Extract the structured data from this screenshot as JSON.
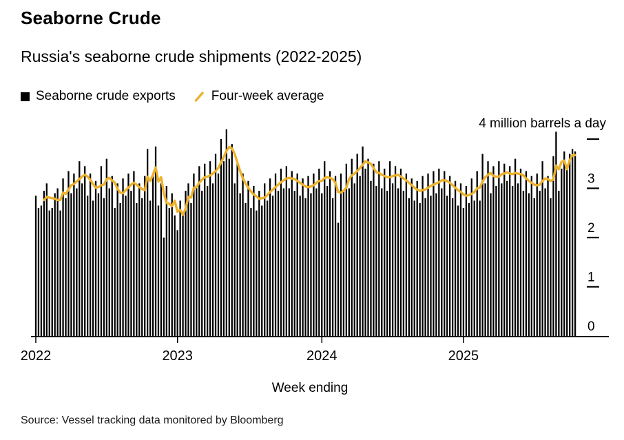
{
  "header": {
    "title": "Seaborne Crude",
    "subtitle": "Russia's seaborne crude shipments (2022-2025)"
  },
  "legend": [
    {
      "label": "Seaborne crude exports",
      "marker": "square",
      "color": "#000000"
    },
    {
      "label": "Four-week average",
      "marker": "slash",
      "color": "#ECB22D"
    }
  ],
  "footer": {
    "source": "Source: Vessel tracking data monitored by Bloomberg"
  },
  "colors": {
    "bar": "#000000",
    "line": "#ECB22D",
    "axis": "#000000",
    "background": "#FFFFFF"
  },
  "chart_data": {
    "type": "bar",
    "title": "Russia's seaborne crude shipments (2022-2025)",
    "frequency": "weekly",
    "x": {
      "label": "Week ending",
      "tick_labels": [
        "2022",
        "2023",
        "2024",
        "2025"
      ],
      "tick_week_indices": [
        0,
        52,
        105,
        157
      ],
      "start": "2022",
      "weeks_total": 199
    },
    "y_axis": {
      "unit_label": "4 million barrels a day",
      "tick_labels": [
        3,
        2,
        1,
        0
      ],
      "dash_values": [
        1,
        2,
        3,
        4
      ],
      "range": [
        0,
        4.3
      ]
    },
    "series": [
      {
        "name": "Seaborne crude exports",
        "type": "bar",
        "units": "million barrels a day",
        "values": [
          2.85,
          2.6,
          2.65,
          2.95,
          3.1,
          2.55,
          2.6,
          2.9,
          3.0,
          2.55,
          3.2,
          2.8,
          3.35,
          2.9,
          3.3,
          3.0,
          3.55,
          3.1,
          3.45,
          2.85,
          3.3,
          2.75,
          3.15,
          2.9,
          3.45,
          2.8,
          3.6,
          3.0,
          3.25,
          2.6,
          3.1,
          2.7,
          3.2,
          2.85,
          3.3,
          2.95,
          3.35,
          2.7,
          3.1,
          2.8,
          3.25,
          3.8,
          2.75,
          3.3,
          3.85,
          2.65,
          3.1,
          2.0,
          3.05,
          2.6,
          2.9,
          2.45,
          2.15,
          2.75,
          2.5,
          2.95,
          3.1,
          2.7,
          3.3,
          3.0,
          3.45,
          2.95,
          3.5,
          3.05,
          3.55,
          3.1,
          3.7,
          3.3,
          4.0,
          3.55,
          4.2,
          3.6,
          3.9,
          3.1,
          3.5,
          2.9,
          3.3,
          2.7,
          3.15,
          2.6,
          3.05,
          2.55,
          2.95,
          2.65,
          3.1,
          2.75,
          3.2,
          2.85,
          3.3,
          2.95,
          3.4,
          3.0,
          3.45,
          3.0,
          3.35,
          2.95,
          3.3,
          2.85,
          3.2,
          2.8,
          3.25,
          2.9,
          3.3,
          3.0,
          3.4,
          2.9,
          3.55,
          3.05,
          3.35,
          2.8,
          3.25,
          2.3,
          3.3,
          2.95,
          3.5,
          3.0,
          3.6,
          3.1,
          3.7,
          3.25,
          3.85,
          3.4,
          3.6,
          3.15,
          3.5,
          3.05,
          3.55,
          3.0,
          3.4,
          2.95,
          3.55,
          3.1,
          3.45,
          3.0,
          3.4,
          2.95,
          3.3,
          2.8,
          3.2,
          2.75,
          3.15,
          2.7,
          3.25,
          2.8,
          3.3,
          2.85,
          3.35,
          2.9,
          3.4,
          3.0,
          3.35,
          2.85,
          3.25,
          2.8,
          3.15,
          2.65,
          3.1,
          2.6,
          3.05,
          2.7,
          3.2,
          2.75,
          3.35,
          2.75,
          3.7,
          3.1,
          3.55,
          2.9,
          3.45,
          3.05,
          3.55,
          3.1,
          3.5,
          3.15,
          3.45,
          3.05,
          3.6,
          3.1,
          3.4,
          2.95,
          3.35,
          2.9,
          3.25,
          2.8,
          3.3,
          2.95,
          3.55,
          3.0,
          3.25,
          2.8,
          3.65,
          4.15,
          2.95,
          3.4,
          3.75,
          3.45,
          3.7,
          3.8,
          3.75
        ]
      },
      {
        "name": "Four-week average",
        "type": "line",
        "derived": "trailing 4-week mean of Seaborne crude exports"
      }
    ]
  }
}
